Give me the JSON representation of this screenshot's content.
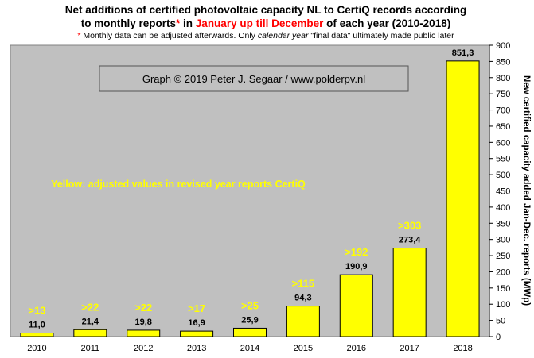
{
  "title": {
    "line1": "Net additions of certified photovoltaic capacity NL to CertiQ records according",
    "line2_part1": "to monthly reports",
    "line2_star": "*",
    "line2_part2": " in ",
    "line2_red": "January up till December",
    "line2_part3": " of each year (2010-2018)"
  },
  "subtitle": {
    "star": "*",
    "part1": " Monthly data can be adjusted afterwards. Only ",
    "italic": "calendar year",
    "part2": " \"final data\" ultimately made public later"
  },
  "colors": {
    "title": "#000000",
    "accent_red": "#ff0000",
    "plot_bg": "#c0c0c0",
    "bar_fill": "#ffff00",
    "bar_stroke": "#000000",
    "revised_label": "#ffff00",
    "credit_box": "#c0c0c0"
  },
  "chart_data": {
    "type": "bar",
    "categories": [
      "2010",
      "2011",
      "2012",
      "2013",
      "2014",
      "2015",
      "2016",
      "2017",
      "2018"
    ],
    "values": [
      11.0,
      21.4,
      19.8,
      16.9,
      25.9,
      94.3,
      190.9,
      273.4,
      851.3
    ],
    "data_labels": [
      "11,0",
      "21,4",
      "19,8",
      "16,9",
      "25,9",
      "94,3",
      "190,9",
      "273,4",
      "851,3"
    ],
    "revised_labels": [
      ">13",
      ">22",
      ">22",
      ">17",
      ">25",
      ">115",
      ">192",
      ">303",
      ""
    ],
    "revised_values": [
      13,
      22,
      22,
      17,
      25,
      115,
      192,
      303,
      null
    ],
    "ylabel": "New certified capacity added Jan-Dec. reports (MWp)",
    "y_axis_side": "right",
    "ylim": [
      0,
      900
    ],
    "yticks": [
      0,
      50,
      100,
      150,
      200,
      250,
      300,
      350,
      400,
      450,
      500,
      550,
      600,
      650,
      700,
      750,
      800,
      850,
      900
    ],
    "grid": false,
    "credit": "Graph  © 2019 Peter J. Segaar / www.polderpv.nl",
    "annotation": "Yellow: adjusted values in revised year reports CertiQ"
  }
}
